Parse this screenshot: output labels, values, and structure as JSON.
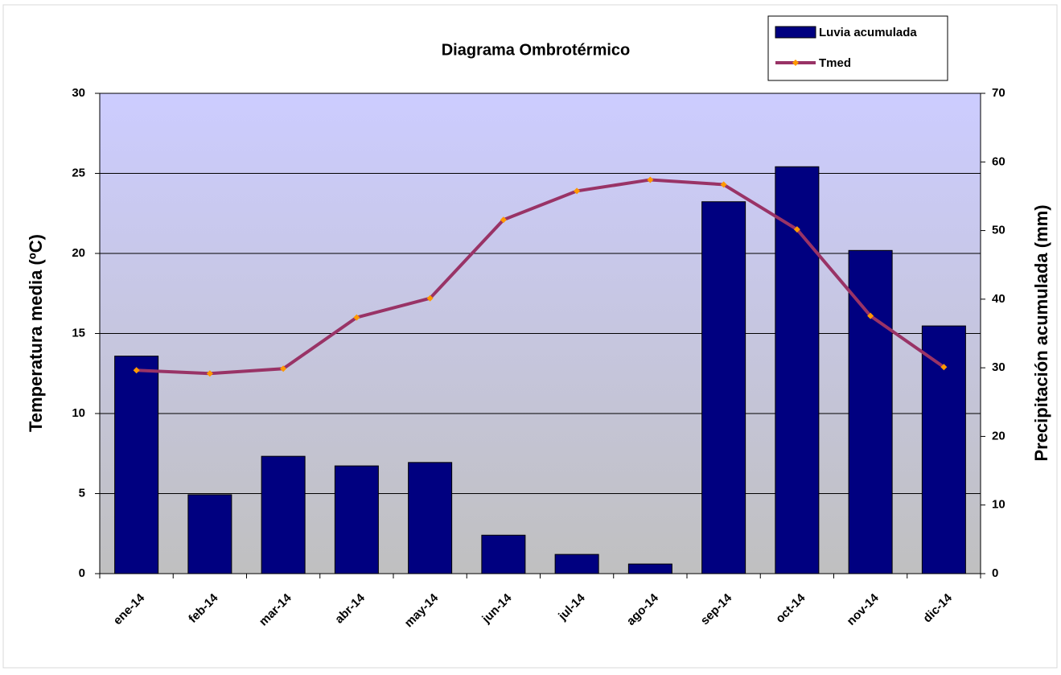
{
  "chart_data": {
    "type": "bar",
    "title": "Diagrama Ombrotérmico",
    "y_label": "Temperatura media (ºC)",
    "y2_label": "Precipitación acumulada (mm)",
    "categories": [
      "ene-14",
      "feb-14",
      "mar-14",
      "abr-14",
      "may-14",
      "jun-14",
      "jul-14",
      "ago-14",
      "sep-14",
      "oct-14",
      "nov-14",
      "dic-14"
    ],
    "series": [
      {
        "name": "Luvia acumulada",
        "type": "bar",
        "axis": "y2",
        "color": "#000080",
        "values": [
          31.7,
          11.5,
          17.1,
          15.7,
          16.2,
          5.6,
          2.8,
          1.4,
          54.2,
          59.3,
          47.1,
          36.1
        ]
      },
      {
        "name": "Tmed",
        "type": "line",
        "axis": "y",
        "color": "#993366",
        "marker_color": "#ff9900",
        "values": [
          12.7,
          12.5,
          12.8,
          16.0,
          17.2,
          22.1,
          23.9,
          24.6,
          24.3,
          21.5,
          16.1,
          12.9
        ]
      }
    ],
    "ylim": [
      0,
      30
    ],
    "yticks": [
      0,
      5,
      10,
      15,
      20,
      25,
      30
    ],
    "y2lim": [
      0,
      70
    ],
    "y2ticks": [
      0,
      10,
      20,
      30,
      40,
      50,
      60,
      70
    ],
    "grid": true,
    "legend": "top-right"
  }
}
